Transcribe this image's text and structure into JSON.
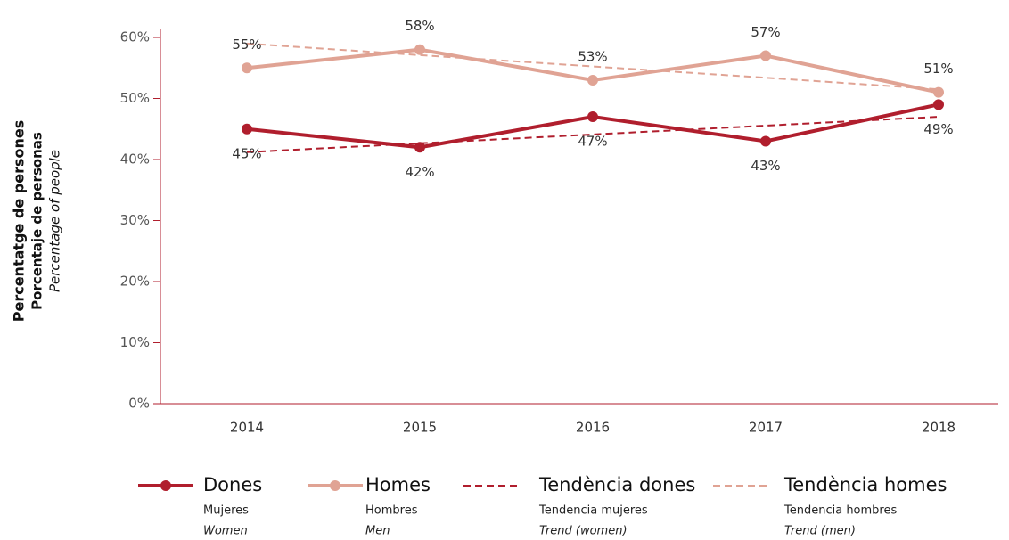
{
  "chart_data": {
    "type": "line",
    "y_label": [
      "Percentatge de persones",
      "Porcentaje de personas",
      "Percentage of people"
    ],
    "categories": [
      "2014",
      "2015",
      "2016",
      "2017",
      "2018"
    ],
    "series": [
      {
        "name": "Dones",
        "labels": [
          "Mujeres",
          "Women"
        ],
        "color": "#b01e2d",
        "style": "solid",
        "markers": true,
        "values": [
          45,
          42,
          47,
          43,
          49
        ],
        "value_labels": [
          "45%",
          "42%",
          "47%",
          "43%",
          "49%"
        ]
      },
      {
        "name": "Homes",
        "labels": [
          "Hombres",
          "Men"
        ],
        "color": "#e0a394",
        "style": "solid",
        "markers": true,
        "values": [
          55,
          58,
          53,
          57,
          51
        ],
        "value_labels": [
          "55%",
          "58%",
          "53%",
          "57%",
          "51%"
        ]
      },
      {
        "name": "Tendència dones",
        "labels": [
          "Tendencia mujeres",
          "Trend (women)"
        ],
        "color": "#b01e2d",
        "style": "dashed",
        "markers": false,
        "values": [
          41.2,
          42.65,
          44.1,
          45.55,
          47.0
        ]
      },
      {
        "name": "Tendència homes",
        "labels": [
          "Tendencia hombres",
          "Trend (men)"
        ],
        "color": "#e0a394",
        "style": "dashed",
        "markers": false,
        "values": [
          59.0,
          57.1,
          55.25,
          53.4,
          51.5
        ]
      }
    ],
    "ylim": [
      0,
      60
    ],
    "yticks": [
      {
        "value": 0,
        "label": "0%"
      },
      {
        "value": 10,
        "label": "10%"
      },
      {
        "value": 20,
        "label": "20%"
      },
      {
        "value": 30,
        "label": "30%"
      },
      {
        "value": 40,
        "label": "40%"
      },
      {
        "value": 50,
        "label": "50%"
      },
      {
        "value": 60,
        "label": "60%"
      }
    ],
    "grid": false
  }
}
